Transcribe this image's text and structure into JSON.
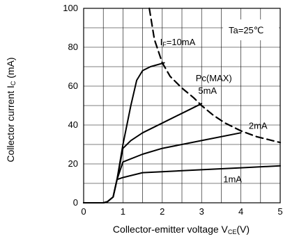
{
  "chart_data": {
    "type": "line",
    "xlabel": "Collector-emitter voltage V",
    "xlabel_sub": "CE",
    "xlabel_unit": "(V)",
    "ylabel": "Collector current I",
    "ylabel_sub": "C",
    "ylabel_unit": " (mA)",
    "xlim": [
      0,
      5
    ],
    "ylim": [
      0,
      100
    ],
    "x_ticks": [
      0,
      1,
      2,
      3,
      4,
      5
    ],
    "y_ticks": [
      0,
      20,
      40,
      60,
      80,
      100
    ],
    "x_grid_step": 0.5,
    "y_grid_step": 10,
    "grid": true,
    "condition_label": "Ta=25℃",
    "series": [
      {
        "name": "IF=10mA",
        "label_main": "I",
        "label_sub": "F",
        "label_rest": "=10mA",
        "style": "solid",
        "x": [
          0,
          0.5,
          0.6,
          0.75,
          0.85,
          1.0,
          1.2,
          1.35,
          1.5,
          1.7,
          2.05
        ],
        "y": [
          0,
          0,
          0.5,
          3,
          12,
          30,
          50,
          63,
          68,
          70,
          72
        ]
      },
      {
        "name": "5mA",
        "label_main": "5mA",
        "style": "solid",
        "x": [
          0,
          0.5,
          0.6,
          0.75,
          0.85,
          1.0,
          1.2,
          1.5,
          2.0,
          2.5,
          3.0
        ],
        "y": [
          0,
          0,
          0.5,
          3,
          12,
          28,
          32,
          36,
          41,
          46,
          51
        ]
      },
      {
        "name": "2mA",
        "label_main": "2mA",
        "style": "solid",
        "x": [
          0,
          0.5,
          0.6,
          0.75,
          0.85,
          1.0,
          1.5,
          2.0,
          3.0,
          4.0
        ],
        "y": [
          0,
          0,
          0.5,
          3,
          12,
          21,
          25,
          28,
          32,
          36
        ]
      },
      {
        "name": "1mA",
        "label_main": "1mA",
        "style": "solid",
        "x": [
          0,
          0.5,
          0.6,
          0.75,
          0.85,
          1.0,
          1.5,
          2.0,
          3.0,
          4.0,
          5.0
        ],
        "y": [
          0,
          0,
          0.5,
          3,
          12,
          13,
          15.5,
          16,
          17,
          18,
          19
        ]
      },
      {
        "name": "Pc(MAX)",
        "label_main": "Pc(MAX)",
        "style": "dashed",
        "x": [
          1.67,
          1.8,
          2.0,
          2.2,
          2.5,
          2.8,
          3.0,
          3.3,
          3.6,
          4.0,
          4.4,
          4.8,
          5.0
        ],
        "y": [
          100,
          84,
          72,
          65,
          59,
          54,
          50,
          45,
          41,
          37,
          34,
          32,
          31
        ]
      }
    ]
  }
}
